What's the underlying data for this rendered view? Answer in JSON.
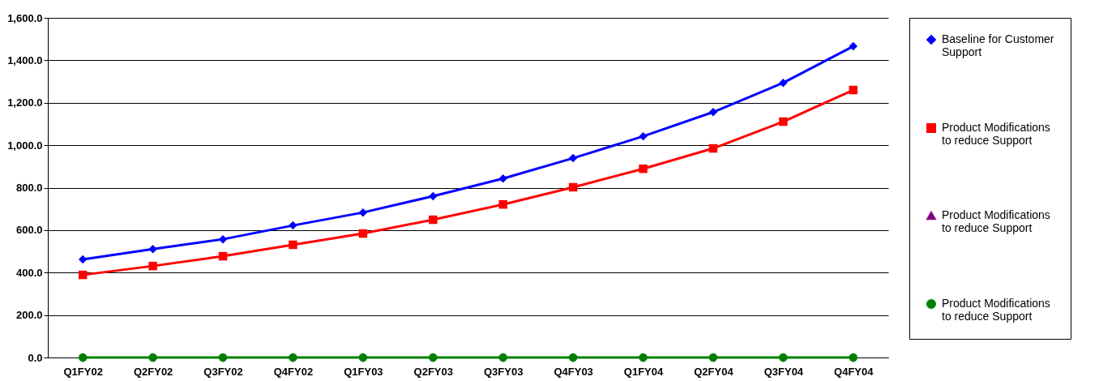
{
  "chart_data": {
    "type": "line",
    "categories": [
      "Q1FY02",
      "Q2FY02",
      "Q3FY02",
      "Q4FY02",
      "Q1FY03",
      "Q2FY03",
      "Q3FY03",
      "Q4FY03",
      "Q1FY04",
      "Q2FY04",
      "Q3FY04",
      "Q4FY04"
    ],
    "series": [
      {
        "name": "Baseline for Customer Support",
        "color": "#0000ff",
        "marker": "diamond",
        "values": [
          462,
          511,
          557,
          622,
          683,
          760,
          843,
          939,
          1042,
          1156,
          1294,
          1466
        ]
      },
      {
        "name": "Product Modifications to reduce Support",
        "color": "#ff0000",
        "marker": "square",
        "values": [
          389,
          431,
          477,
          531,
          584,
          649,
          721,
          802,
          889,
          985,
          1111,
          1260
        ]
      },
      {
        "name": "Product Modifications to reduce Support",
        "color": "#800080",
        "marker": "triangle",
        "values": [
          null,
          null,
          null,
          null,
          null,
          null,
          null,
          null,
          null,
          null,
          null,
          null
        ]
      },
      {
        "name": "Product Modifications to reduce Support",
        "color": "#008000",
        "marker": "circle",
        "values": [
          0,
          0,
          0,
          0,
          0,
          0,
          0,
          0,
          0,
          0,
          0,
          0
        ]
      }
    ],
    "ylim": [
      0,
      1600
    ],
    "yticks": [
      {
        "value": 0,
        "label": "0.0"
      },
      {
        "value": 200,
        "label": "200.0"
      },
      {
        "value": 400,
        "label": "400.0"
      },
      {
        "value": 600,
        "label": "600.0"
      },
      {
        "value": 800,
        "label": "800.0"
      },
      {
        "value": 1000,
        "label": "1,000.0"
      },
      {
        "value": 1200,
        "label": "1,200.0"
      },
      {
        "value": 1400,
        "label": "1,400.0"
      },
      {
        "value": 1600,
        "label": "1,600.0"
      }
    ],
    "grid": "y",
    "legend": "right"
  }
}
